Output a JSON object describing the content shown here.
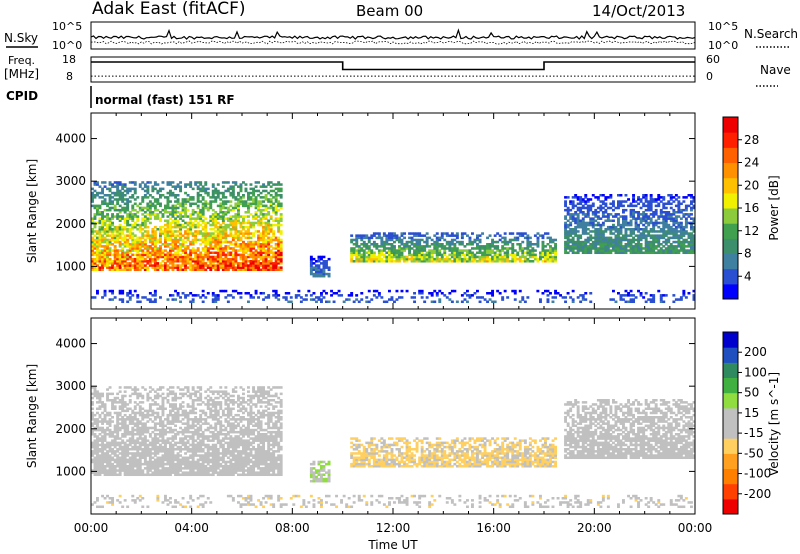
{
  "header": {
    "station": "Adak East (fitACF)",
    "beam": "Beam 00",
    "date": "14/Oct/2013"
  },
  "noise_panel": {
    "left_label": "N.Sky",
    "right_label": "N.Search",
    "y_ticks_left": [
      "10^5",
      "10^0"
    ],
    "y_ticks_right": [
      "10^5",
      "10^0"
    ]
  },
  "freq_panel": {
    "left_label_1": "Freq.",
    "left_label_2": "[MHz]",
    "right_label": "Nave",
    "y_ticks_left": [
      "18",
      "8"
    ],
    "y_ticks_right": [
      "60",
      "0"
    ],
    "freq_steps": [
      {
        "start_hour": 0,
        "end_hour": 10,
        "mhz": 16
      },
      {
        "start_hour": 10,
        "end_hour": 18,
        "mhz": 13
      },
      {
        "start_hour": 18,
        "end_hour": 24,
        "mhz": 16
      }
    ],
    "nave_level": 14
  },
  "cpid": {
    "label": "CPID",
    "mode_text": "normal (fast) 151 RF"
  },
  "x_axis": {
    "label": "Time UT",
    "ticks": [
      "00:00",
      "04:00",
      "08:00",
      "12:00",
      "16:00",
      "20:00",
      "00:00"
    ],
    "hour_range": [
      0,
      24
    ]
  },
  "chart_data": [
    {
      "type": "heatmap",
      "title": "Power",
      "ylabel": "Slant Range [km]",
      "ylim": [
        0,
        4600
      ],
      "y_ticks": [
        "1000",
        "2000",
        "3000",
        "4000"
      ],
      "xlabel": "Time UT",
      "colorbar": {
        "label": "Power [dB]",
        "range": [
          0,
          32
        ],
        "tick_labels": [
          "4",
          "8",
          "12",
          "16",
          "20",
          "24",
          "28"
        ],
        "colors": [
          "#0000ff",
          "#2a4fd0",
          "#3f7fa0",
          "#3c8f6a",
          "#40a050",
          "#8ccc3c",
          "#f0f000",
          "#ffc000",
          "#ff9000",
          "#ff6000",
          "#ff2000",
          "#ee0000"
        ]
      },
      "echo_regions": [
        {
          "t_start": 0,
          "t_end": 7.5,
          "range_low": 900,
          "range_high": 3000,
          "peak_db": 28
        },
        {
          "t_start": 8.7,
          "t_end": 9.4,
          "range_low": 750,
          "range_high": 1250,
          "peak_db": 8
        },
        {
          "t_start": 10.3,
          "t_end": 18.5,
          "range_low": 1100,
          "range_high": 1800,
          "peak_db": 20
        },
        {
          "t_start": 18.8,
          "t_end": 24,
          "range_low": 1300,
          "range_high": 2700,
          "peak_db": 12
        },
        {
          "t_start": 0,
          "t_end": 24,
          "range_low": 150,
          "range_high": 450,
          "peak_db": 6
        }
      ]
    },
    {
      "type": "heatmap",
      "title": "Velocity",
      "ylabel": "Slant Range [km]",
      "ylim": [
        0,
        4600
      ],
      "y_ticks": [
        "1000",
        "2000",
        "3000",
        "4000"
      ],
      "xlabel": "Time UT",
      "colorbar": {
        "label": "Velocity [m s^-1]",
        "range": [
          -250,
          250
        ],
        "tick_labels": [
          "200",
          "100",
          "50",
          "15",
          "-15",
          "-50",
          "-100",
          "-200"
        ],
        "colors": [
          "#ee0000",
          "#ff4000",
          "#ff8000",
          "#ffa020",
          "#ffd060",
          "#c0c0c0",
          "#c0c0c0",
          "#90dd40",
          "#40b040",
          "#308a60",
          "#2050c0",
          "#0000cc"
        ]
      },
      "echo_regions": [
        {
          "t_start": 0,
          "t_end": 7.5,
          "range_low": 900,
          "range_high": 3000,
          "velocity": 0
        },
        {
          "t_start": 8.7,
          "t_end": 9.4,
          "range_low": 750,
          "range_high": 1250,
          "velocity": 40
        },
        {
          "t_start": 10.3,
          "t_end": 18.5,
          "range_low": 1100,
          "range_high": 1800,
          "velocity": -50
        },
        {
          "t_start": 18.8,
          "t_end": 24,
          "range_low": 1300,
          "range_high": 2700,
          "velocity": 0
        },
        {
          "t_start": 0,
          "t_end": 24,
          "range_low": 150,
          "range_high": 450,
          "velocity": -20
        }
      ]
    }
  ]
}
